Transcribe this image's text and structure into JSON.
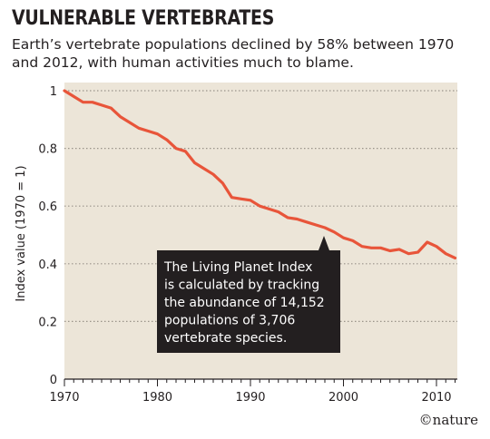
{
  "chart_data": {
    "type": "line",
    "title": "VULNERABLE VERTEBRATES",
    "subtitle": "Earth’s vertebrate populations declined by 58% between 1970 and 2012, with human activities much to blame.",
    "xlabel": "",
    "ylabel": "Index value (1970 = 1)",
    "xlim": [
      1970,
      2012
    ],
    "ylim": [
      0,
      1
    ],
    "x_ticks": [
      1970,
      1980,
      1990,
      2000,
      2010
    ],
    "y_ticks": [
      {
        "value": 0,
        "label": "0"
      },
      {
        "value": 0.2,
        "label": "0.2"
      },
      {
        "value": 0.4,
        "label": "0.4"
      },
      {
        "value": 0.6,
        "label": "0.6"
      },
      {
        "value": 0.8,
        "label": "0.8"
      },
      {
        "value": 1,
        "label": "1"
      }
    ],
    "grid": "horizontal dotted",
    "series": [
      {
        "x": [
          1970,
          1971,
          1972,
          1973,
          1974,
          1975,
          1976,
          1977,
          1978,
          1979,
          1980,
          1981,
          1982,
          1983,
          1984,
          1985,
          1986,
          1987,
          1988,
          1989,
          1990,
          1991,
          1992,
          1993,
          1994,
          1995,
          1996,
          1997,
          1998,
          1999,
          2000,
          2001,
          2002,
          2003,
          2004,
          2005,
          2006,
          2007,
          2008,
          2009,
          2010,
          2011,
          2012
        ],
        "values": [
          1.0,
          0.98,
          0.96,
          0.96,
          0.95,
          0.94,
          0.91,
          0.89,
          0.87,
          0.86,
          0.85,
          0.83,
          0.8,
          0.79,
          0.75,
          0.73,
          0.71,
          0.68,
          0.63,
          0.625,
          0.62,
          0.6,
          0.59,
          0.58,
          0.56,
          0.555,
          0.545,
          0.535,
          0.525,
          0.51,
          0.49,
          0.48,
          0.46,
          0.455,
          0.455,
          0.445,
          0.45,
          0.435,
          0.44,
          0.475,
          0.46,
          0.435,
          0.42
        ]
      }
    ],
    "annotation": {
      "lines": [
        "The Living Planet Index",
        "is calculated by tracking",
        "the abundance of 14,152",
        "populations of 3,706",
        "vertebrate species."
      ],
      "pointer_year": 1998
    },
    "credit": "©nature",
    "colors": {
      "line": "#e8553a",
      "plot_background": "#ece5d8",
      "annotation_background": "#231f20",
      "annotation_text": "#ffffff",
      "grid": "#9a948a",
      "axis": "#231f20"
    }
  }
}
